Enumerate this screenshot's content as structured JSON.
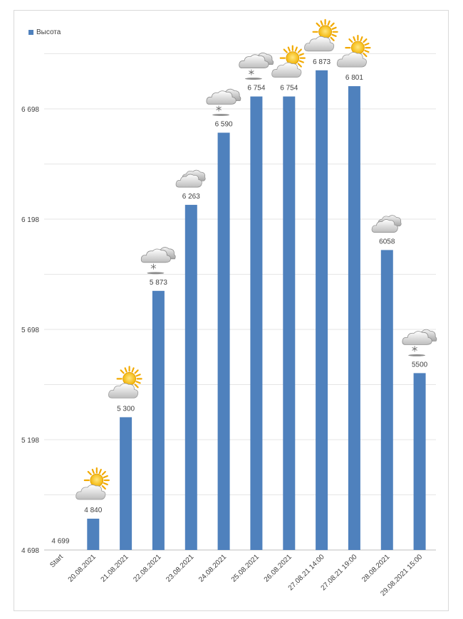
{
  "chart_data": {
    "type": "bar",
    "legend": {
      "label": "Высота",
      "position": "top-left"
    },
    "color": "#4f81bd",
    "ylim": [
      4698,
      7198
    ],
    "y_ticks": [
      {
        "value": 4698,
        "label": "4 698"
      },
      {
        "value": 5198,
        "label": "5 198"
      },
      {
        "value": 5698,
        "label": "5 698"
      },
      {
        "value": 6198,
        "label": "6 198"
      },
      {
        "value": 6698,
        "label": "6 698"
      }
    ],
    "grid": true,
    "categories": [
      "Start",
      "20.08.2021",
      "21.08.2021",
      "22.08.2021",
      "23.08.2021",
      "24.08.2021",
      "25.08.2021",
      "26.08.2021",
      "27.08.21 14:00",
      "27.08.21 19:00",
      "28.08.2021",
      "29.08.2021 15:00"
    ],
    "values": [
      4699,
      4840,
      5300,
      5873,
      6263,
      6590,
      6754,
      6754,
      6873,
      6801,
      6058,
      5500
    ],
    "data_labels": [
      "4 699",
      "4 840",
      "5 300",
      "5 873",
      "6 263",
      "6 590",
      "6 754",
      "6 754",
      "6 873",
      "6 801",
      "6058",
      "5500"
    ],
    "weather_icons": [
      "none",
      "sun-cloud-icon",
      "sun-cloud-icon",
      "snow-cloud-icon",
      "clouds-icon",
      "snow-cloud-icon",
      "snow-cloud-icon",
      "sun-cloud-icon",
      "sun-cloud-icon",
      "sun-cloud-icon",
      "clouds-icon",
      "snow-cloud-icon"
    ]
  }
}
